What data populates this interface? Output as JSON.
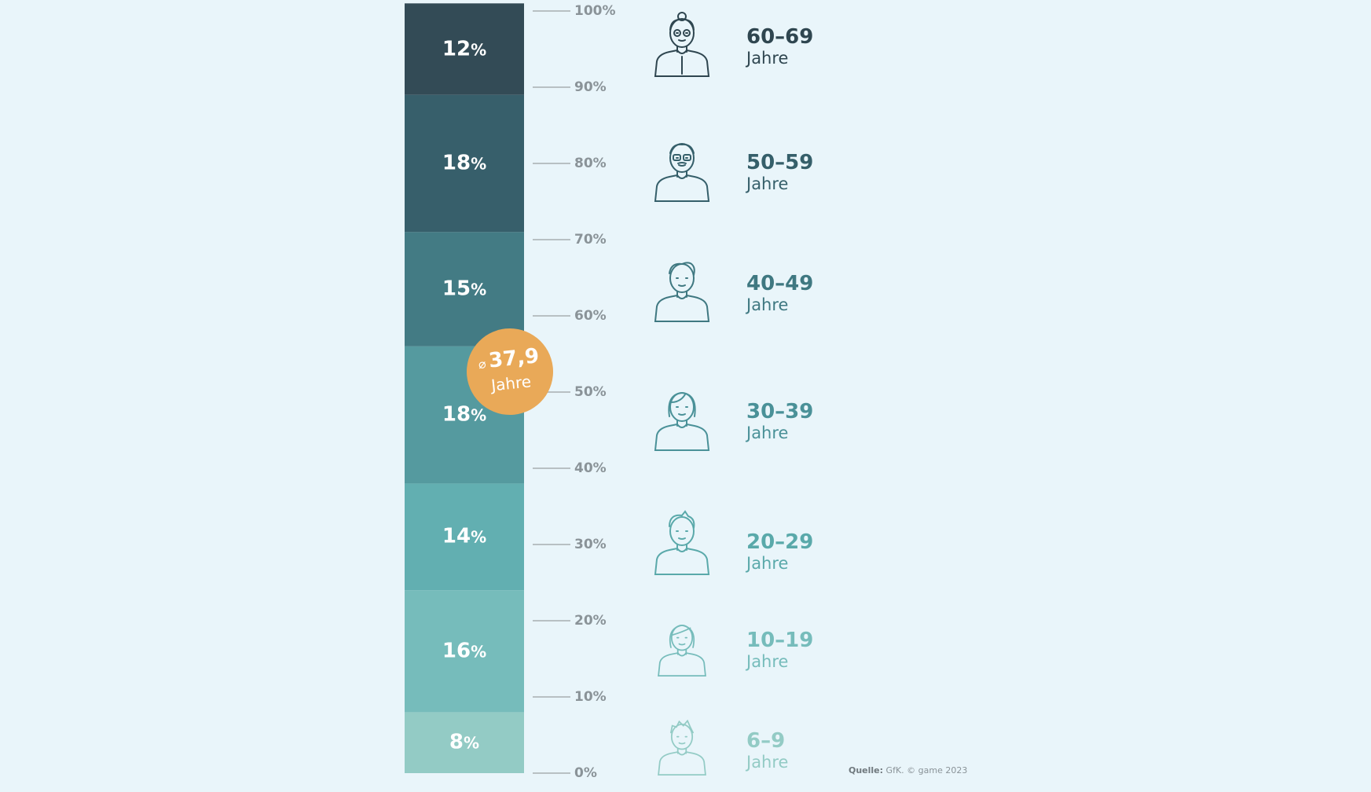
{
  "chart_data": {
    "type": "bar",
    "stacked": true,
    "orientation": "vertical",
    "unit": "%",
    "categories": [
      "6–9",
      "10–19",
      "20–29",
      "30–39",
      "40–49",
      "50–59",
      "60–69"
    ],
    "values": [
      8,
      16,
      14,
      18,
      15,
      18,
      12
    ],
    "value_labels": [
      "8",
      "16",
      "14",
      "18",
      "15",
      "18",
      "12"
    ],
    "group_unit": "Jahre",
    "colors": [
      "#93cbc5",
      "#76bcbb",
      "#62afb1",
      "#559a9f",
      "#437b84",
      "#375f6b",
      "#334b56"
    ],
    "label_colors": [
      "#93cbc5",
      "#76bcbb",
      "#5aa9aa",
      "#4a9198",
      "#3f7881",
      "#355f6a",
      "#2f4650"
    ],
    "ylim": [
      0,
      100
    ],
    "yticks": [
      0,
      10,
      20,
      30,
      40,
      50,
      60,
      70,
      80,
      90,
      100
    ],
    "ytick_labels": [
      "0%",
      "10%",
      "20%",
      "30%",
      "40%",
      "50%",
      "60%",
      "70%",
      "80%",
      "90%",
      "100%"
    ],
    "average": {
      "symbol": "⌀",
      "value": "37,9",
      "unit": "Jahre",
      "color": "#e9a958"
    },
    "icons": [
      "boy-icon",
      "girl-icon",
      "young-man-icon",
      "woman-icon",
      "man-icon",
      "older-man-glasses-icon",
      "grandmother-icon"
    ]
  },
  "source": {
    "label": "Quelle:",
    "text": "GfK. © game 2023"
  }
}
